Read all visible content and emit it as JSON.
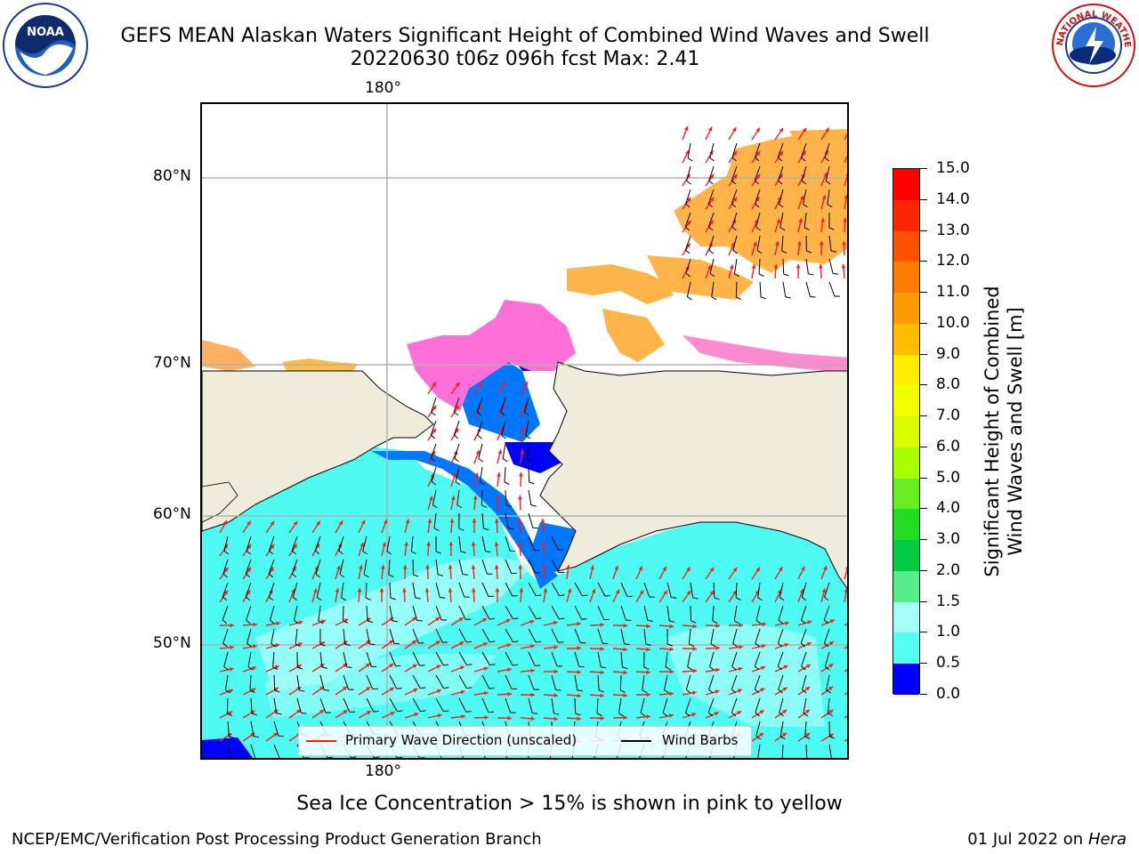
{
  "title": {
    "line1": "GEFS MEAN Alaskan Waters Significant Height of Combined Wind Waves and Swell",
    "line2": "20220630 t06z 096h fcst   Max: 2.41"
  },
  "logos": {
    "left": {
      "icon": "noaa-logo",
      "text": "NOAA"
    },
    "right": {
      "icon": "nws-logo",
      "text": "NATIONAL WEATHER SERVICE"
    }
  },
  "map": {
    "top_lon_label": "180°",
    "bottom_lon_label": "180°",
    "lat_labels": [
      "80°N",
      "70°N",
      "60°N",
      "50°N"
    ],
    "colors": {
      "land": "#efecdc",
      "coast": "#000000",
      "ice": "#ffb44a",
      "grid": "#b0b0b0",
      "wave_arrow": "#ff1a1a",
      "wind_barb": "#000000"
    }
  },
  "legend": {
    "primary_wave": "Primary Wave Direction (unscaled)",
    "wind_barbs": "Wind Barbs"
  },
  "colorbar": {
    "title_line1": "Significant Height of Combined",
    "title_line2": "Wind Waves and Swell [m]",
    "labels": [
      "15.0",
      "14.0",
      "13.0",
      "12.0",
      "11.0",
      "10.0",
      "9.0",
      "8.0",
      "7.0",
      "6.0",
      "5.0",
      "4.0",
      "3.0",
      "2.0",
      "1.5",
      "1.0",
      "0.5",
      "0.0"
    ],
    "colors": [
      "#ff0000",
      "#ff2600",
      "#ff5200",
      "#ff7c00",
      "#ff9d00",
      "#ffbd00",
      "#ffee00",
      "#f0ff00",
      "#d9ff00",
      "#a8ff00",
      "#66ee22",
      "#22dd22",
      "#00cc44",
      "#55ee88",
      "#a6fff7",
      "#52fff0",
      "#00f2ff",
      "#0077ff",
      "#0000ff"
    ]
  },
  "note": "Sea Ice Concentration > 15% is shown in pink to yellow",
  "footer": {
    "left": "NCEP/EMC/Verification Post Processing Product Generation Branch",
    "right_date": "01 Jul 2022 on ",
    "right_host": "Hera"
  }
}
